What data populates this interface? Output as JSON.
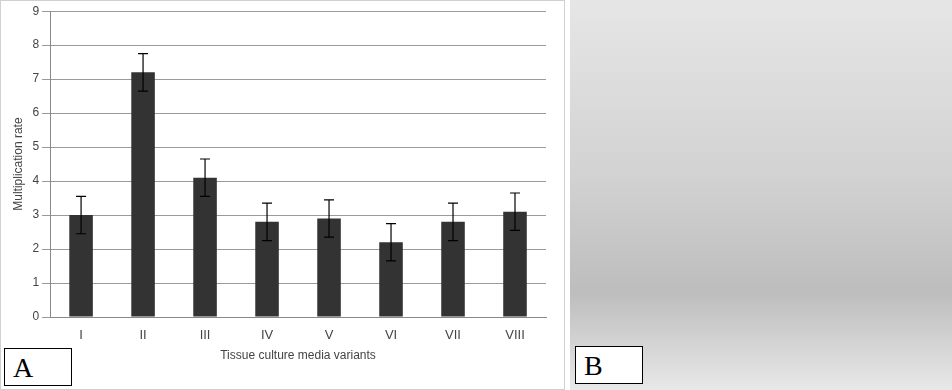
{
  "chart_data": {
    "type": "bar",
    "x_label": "Tissue culture media variants",
    "y_label": "Multiplication rate",
    "categories": [
      "I",
      "II",
      "III",
      "IV",
      "V",
      "VI",
      "VII",
      "VIII"
    ],
    "values": [
      3.0,
      7.2,
      4.1,
      2.8,
      2.9,
      2.2,
      2.8,
      3.1
    ],
    "errors": [
      0.55,
      0.55,
      0.55,
      0.55,
      0.55,
      0.55,
      0.55,
      0.55
    ],
    "color": "#333333",
    "ylim": [
      0,
      9
    ],
    "yticks": [
      0,
      1,
      2,
      3,
      4,
      5,
      6,
      7,
      8,
      9
    ],
    "grid": true
  },
  "panel_labels": [
    "A",
    "B"
  ]
}
